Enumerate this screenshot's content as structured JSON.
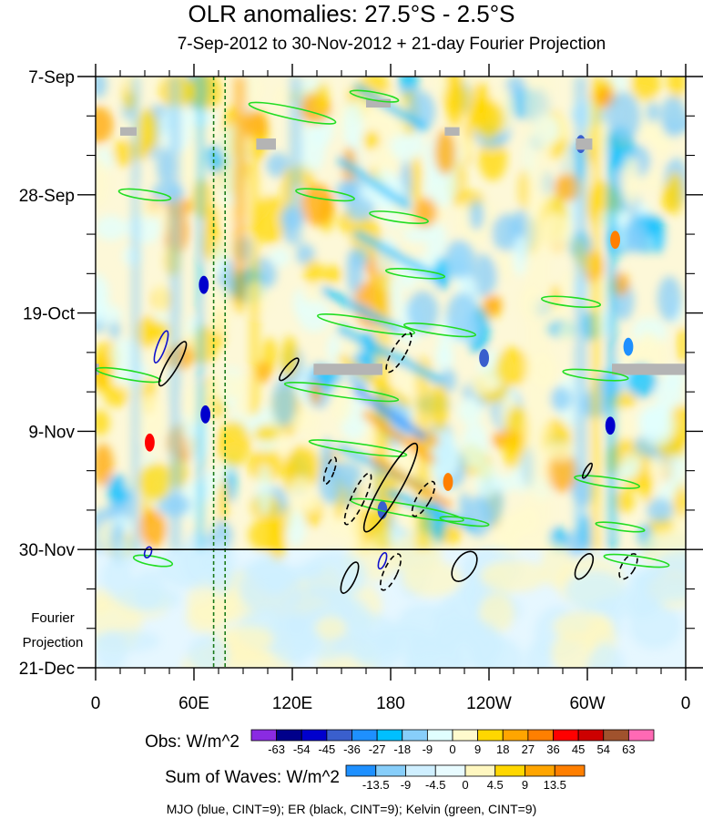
{
  "chart_data": {
    "type": "heatmap",
    "title": "OLR anomalies: 27.5°S - 2.5°S",
    "subtitle": "7-Sep-2012 to 30-Nov-2012 + 21-day Fourier Projection",
    "x_tick_labels": [
      "0",
      "60E",
      "120E",
      "180",
      "120W",
      "60W",
      "0"
    ],
    "x_ticks_deg_east": [
      0,
      60,
      120,
      180,
      240,
      300,
      360
    ],
    "xlim_deg_east": [
      0,
      360
    ],
    "y_tick_labels": [
      "7-Sep",
      "28-Sep",
      "19-Oct",
      "9-Nov",
      "30-Nov",
      "21-Dec"
    ],
    "y_ticks_day": [
      0,
      21,
      42,
      63,
      84,
      105
    ],
    "ylim_day": [
      0,
      105
    ],
    "observation_end_label": "30-Nov",
    "projection_label_1": "Fourier",
    "projection_label_2": "Projection",
    "reference_longitudes_deg_east": [
      72,
      79
    ],
    "obs_colorbar": {
      "label": "Obs: W/m^2",
      "levels": [
        "-63",
        "-54",
        "-45",
        "-36",
        "-27",
        "-18",
        "-9",
        "0",
        "9",
        "18",
        "27",
        "36",
        "45",
        "54",
        "63"
      ],
      "colors": [
        "#8a2be2",
        "#00008b",
        "#0000cd",
        "#3a5fcd",
        "#1e90ff",
        "#00bfff",
        "#87cefa",
        "#e0ffff",
        "#fffacd",
        "#ffd700",
        "#ffa500",
        "#ff7f00",
        "#ff0000",
        "#cd0000",
        "#a0522d",
        "#ff69b4"
      ]
    },
    "waves_colorbar": {
      "label": "Sum of Waves: W/m^2",
      "levels": [
        "-13.5",
        "-9",
        "-4.5",
        "0",
        "4.5",
        "9",
        "13.5"
      ],
      "colors": [
        "#1e90ff",
        "#87cefa",
        "#cfefff",
        "#e8fbff",
        "#fff7c0",
        "#ffd700",
        "#ffa500",
        "#ff7f00"
      ]
    },
    "contour_legend": "MJO (blue, CINT=9); ER (black, CINT=9); Kelvin (green, CINT=9)",
    "series": [
      {
        "name": "MJO",
        "color": "#1010cc"
      },
      {
        "name": "ER",
        "color": "#000000"
      },
      {
        "name": "Kelvin",
        "color": "#22dd22"
      }
    ],
    "bands": [
      {
        "lon": [
          22,
          27
        ],
        "day": [
          0,
          84
        ],
        "value": -14
      },
      {
        "lon": [
          45,
          52
        ],
        "day": [
          0,
          84
        ],
        "value": -16
      },
      {
        "lon": [
          62,
          66
        ],
        "day": [
          0,
          84
        ],
        "value": -18
      },
      {
        "lon": [
          84,
          92
        ],
        "day": [
          0,
          40
        ],
        "value": 22
      },
      {
        "lon": [
          94,
          100
        ],
        "day": [
          10,
          60
        ],
        "value": 14
      },
      {
        "lon": [
          118,
          126
        ],
        "day": [
          0,
          30
        ],
        "value": -12
      },
      {
        "lon": [
          170,
          180
        ],
        "day": [
          35,
          84
        ],
        "value": 16
      },
      {
        "lon": [
          195,
          205
        ],
        "day": [
          50,
          84
        ],
        "value": 14
      },
      {
        "lon": [
          262,
          278
        ],
        "day": [
          0,
          84
        ],
        "value": 3
      },
      {
        "lon": [
          292,
          300
        ],
        "day": [
          0,
          84
        ],
        "value": -14
      },
      {
        "lon": [
          302,
          308
        ],
        "day": [
          0,
          84
        ],
        "value": 16
      },
      {
        "lon": [
          312,
          318
        ],
        "day": [
          10,
          84
        ],
        "value": -18
      }
    ],
    "streaks": [
      {
        "lon": [
          160,
          200
        ],
        "day": [
          2,
          9
        ],
        "value": -20
      },
      {
        "lon": [
          150,
          190
        ],
        "day": [
          15,
          23
        ],
        "value": -18
      },
      {
        "lon": [
          160,
          210
        ],
        "day": [
          28,
          36
        ],
        "value": -22
      },
      {
        "lon": [
          140,
          185
        ],
        "day": [
          38,
          45
        ],
        "value": -20
      },
      {
        "lon": [
          150,
          210
        ],
        "day": [
          45,
          54
        ],
        "value": -26
      },
      {
        "lon": [
          160,
          200
        ],
        "day": [
          56,
          64
        ],
        "value": -32
      },
      {
        "lon": [
          150,
          200
        ],
        "day": [
          66,
          73
        ],
        "value": -24
      },
      {
        "lon": [
          180,
          230
        ],
        "day": [
          74,
          80
        ],
        "value": -22
      },
      {
        "lon": [
          165,
          205
        ],
        "day": [
          60,
          68
        ],
        "value": 24
      },
      {
        "lon": [
          170,
          215
        ],
        "day": [
          68,
          76
        ],
        "value": 22
      },
      {
        "lon": [
          150,
          190
        ],
        "day": [
          50,
          58
        ],
        "value": 18
      }
    ],
    "spots": [
      {
        "lon": 33,
        "day": 65,
        "value": 42
      },
      {
        "lon": 317,
        "day": 29,
        "value": 36
      },
      {
        "lon": 215,
        "day": 72,
        "value": 30
      },
      {
        "lon": 66,
        "day": 37,
        "value": -50
      },
      {
        "lon": 67,
        "day": 60,
        "value": -45
      },
      {
        "lon": 314,
        "day": 62,
        "value": -48
      },
      {
        "lon": 296,
        "day": 12,
        "value": -40
      },
      {
        "lon": 175,
        "day": 77,
        "value": -42
      },
      {
        "lon": 237,
        "day": 50,
        "value": -36
      },
      {
        "lon": 325,
        "day": 48,
        "value": -32
      }
    ],
    "missing": [
      {
        "lon": [
          15,
          25
        ],
        "day": [
          9,
          10.5
        ]
      },
      {
        "lon": [
          98,
          110
        ],
        "day": [
          11,
          13
        ]
      },
      {
        "lon": [
          165,
          180
        ],
        "day": [
          4,
          5.5
        ]
      },
      {
        "lon": [
          213,
          222
        ],
        "day": [
          9,
          10.5
        ]
      },
      {
        "lon": [
          293,
          303
        ],
        "day": [
          11,
          13
        ]
      },
      {
        "lon": [
          0,
          2
        ],
        "day": [
          51,
          53
        ]
      },
      {
        "lon": [
          133,
          175
        ],
        "day": [
          51,
          53
        ]
      },
      {
        "lon": [
          315,
          360
        ],
        "day": [
          51,
          53
        ]
      }
    ],
    "kelvin_contours": [
      {
        "lon": 120,
        "day": 6.5,
        "rx_deg": 27,
        "ry_day": 1.0,
        "tilt": 12
      },
      {
        "lon": 170,
        "day": 3.5,
        "rx_deg": 15,
        "ry_day": 0.7,
        "tilt": 10
      },
      {
        "lon": 30,
        "day": 21,
        "rx_deg": 16,
        "ry_day": 0.8,
        "tilt": 8
      },
      {
        "lon": 140,
        "day": 21,
        "rx_deg": 18,
        "ry_day": 0.8,
        "tilt": 8
      },
      {
        "lon": 185,
        "day": 25,
        "rx_deg": 18,
        "ry_day": 0.8,
        "tilt": 8
      },
      {
        "lon": 195,
        "day": 35,
        "rx_deg": 18,
        "ry_day": 0.7,
        "tilt": 6
      },
      {
        "lon": 290,
        "day": 40,
        "rx_deg": 18,
        "ry_day": 0.8,
        "tilt": 6
      },
      {
        "lon": 165,
        "day": 44,
        "rx_deg": 30,
        "ry_day": 1.0,
        "tilt": 10
      },
      {
        "lon": 210,
        "day": 45,
        "rx_deg": 22,
        "ry_day": 0.8,
        "tilt": 8
      },
      {
        "lon": 20,
        "day": 53,
        "rx_deg": 20,
        "ry_day": 0.8,
        "tilt": 10
      },
      {
        "lon": 150,
        "day": 56,
        "rx_deg": 35,
        "ry_day": 0.9,
        "tilt": 8
      },
      {
        "lon": 305,
        "day": 53,
        "rx_deg": 20,
        "ry_day": 0.8,
        "tilt": 6
      },
      {
        "lon": 160,
        "day": 66,
        "rx_deg": 30,
        "ry_day": 0.8,
        "tilt": 8
      },
      {
        "lon": 190,
        "day": 77,
        "rx_deg": 35,
        "ry_day": 1.0,
        "tilt": 10
      },
      {
        "lon": 225,
        "day": 79,
        "rx_deg": 15,
        "ry_day": 0.6,
        "tilt": 8
      },
      {
        "lon": 312,
        "day": 72,
        "rx_deg": 20,
        "ry_day": 0.8,
        "tilt": 8
      },
      {
        "lon": 320,
        "day": 80,
        "rx_deg": 15,
        "ry_day": 0.6,
        "tilt": 8
      },
      {
        "lon": 330,
        "day": 86,
        "rx_deg": 20,
        "ry_day": 0.8,
        "tilt": 8
      },
      {
        "lon": 35,
        "day": 86,
        "rx_deg": 12,
        "ry_day": 0.8,
        "tilt": 10
      }
    ],
    "er_contours": [
      {
        "lon": 47,
        "day": 51,
        "rx_deg": 3.5,
        "ry_day": 4.5,
        "tilt": 30,
        "dashed": false
      },
      {
        "lon": 118,
        "day": 52,
        "rx_deg": 2.5,
        "ry_day": 2.5,
        "tilt": 40,
        "dashed": false
      },
      {
        "lon": 185,
        "day": 49,
        "rx_deg": 4,
        "ry_day": 4,
        "tilt": 30,
        "dashed": true
      },
      {
        "lon": 143,
        "day": 70,
        "rx_deg": 2.5,
        "ry_day": 2.5,
        "tilt": 20,
        "dashed": true
      },
      {
        "lon": 160,
        "day": 75,
        "rx_deg": 4,
        "ry_day": 5,
        "tilt": 25,
        "dashed": true
      },
      {
        "lon": 180,
        "day": 73,
        "rx_deg": 6,
        "ry_day": 9,
        "tilt": 30,
        "dashed": false
      },
      {
        "lon": 200,
        "day": 75,
        "rx_deg": 4,
        "ry_day": 3.5,
        "tilt": 30,
        "dashed": true
      },
      {
        "lon": 155,
        "day": 89,
        "rx_deg": 3.5,
        "ry_day": 3,
        "tilt": 25,
        "dashed": false
      },
      {
        "lon": 180,
        "day": 88,
        "rx_deg": 4,
        "ry_day": 3.5,
        "tilt": 25,
        "dashed": true
      },
      {
        "lon": 225,
        "day": 87,
        "rx_deg": 6,
        "ry_day": 3,
        "tilt": 35,
        "dashed": false
      },
      {
        "lon": 300,
        "day": 70,
        "rx_deg": 1.5,
        "ry_day": 1.5,
        "tilt": 30,
        "dashed": false
      },
      {
        "lon": 298,
        "day": 87,
        "rx_deg": 4,
        "ry_day": 2.5,
        "tilt": 30,
        "dashed": false
      },
      {
        "lon": 325,
        "day": 87,
        "rx_deg": 4,
        "ry_day": 2.5,
        "tilt": 30,
        "dashed": true
      }
    ],
    "mjo_contours": [
      {
        "lon": 40,
        "day": 48,
        "rx_deg": 2.5,
        "ry_day": 3,
        "tilt": 20
      },
      {
        "lon": 175,
        "day": 86,
        "rx_deg": 2,
        "ry_day": 1.5,
        "tilt": 20
      },
      {
        "lon": 32,
        "day": 84.5,
        "rx_deg": 2,
        "ry_day": 1,
        "tilt": 20
      }
    ]
  }
}
